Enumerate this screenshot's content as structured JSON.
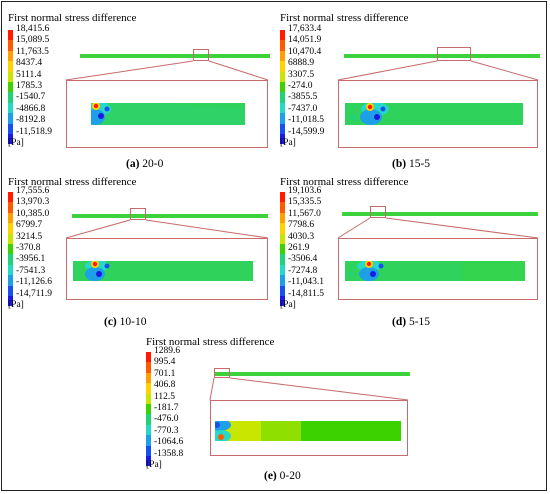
{
  "colors": {
    "ramp": [
      "#ff1a00",
      "#ff5a00",
      "#ffa000",
      "#ffd200",
      "#c8e600",
      "#3cd200",
      "#22d27a",
      "#26d8c8",
      "#1ea0e8",
      "#1850f0",
      "#1a1ae0"
    ],
    "field_green": "#2fd25a",
    "strip_green": "#3cd23c",
    "box_stroke": "#c76a6a"
  },
  "panels": [
    {
      "title": "First normal stress difference",
      "ticks": [
        "18,415.6",
        "15,089.5",
        "11,763.5",
        "8437.4",
        "5111.4",
        "1785.3",
        "-1540.7",
        "-4866.8",
        "-8192.8",
        "-11,518.9"
      ],
      "unit": "[Pa]",
      "caption_label": "(a)",
      "caption_text": "20-0"
    },
    {
      "title": "First normal stress difference",
      "ticks": [
        "17,633.4",
        "14,051.9",
        "10,470.4",
        "6888.9",
        "3307.5",
        "-274.0",
        "-3855.5",
        "-7437.0",
        "-11,018.5",
        "-14,599.9"
      ],
      "unit": "[Pa]",
      "caption_label": "(b)",
      "caption_text": "15-5"
    },
    {
      "title": "First normal stress difference",
      "ticks": [
        "17,555.6",
        "13,970.3",
        "10,385.0",
        "6799.7",
        "3214.5",
        "-370.8",
        "-3956.1",
        "-7541.3",
        "-11,126.6",
        "-14,711.9"
      ],
      "unit": "[Pa]",
      "caption_label": "(c)",
      "caption_text": "10-10"
    },
    {
      "title": "First normal stress difference",
      "ticks": [
        "19,103.6",
        "15,335.5",
        "11,567.0",
        "7798.6",
        "4030.3",
        "261.9",
        "-3506.4",
        "-7274.8",
        "-11,043.1",
        "-14,811.5"
      ],
      "unit": "[Pa]",
      "caption_label": "(d)",
      "caption_text": "5-15"
    },
    {
      "title": "First normal stress difference",
      "ticks": [
        "1289.6",
        "995.4",
        "701.1",
        "406.8",
        "112.5",
        "-181.7",
        "-476.0",
        "-770.3",
        "-1064.6",
        "-1358.8"
      ],
      "unit": "[Pa]",
      "caption_label": "(e)",
      "caption_text": "0-20"
    }
  ]
}
